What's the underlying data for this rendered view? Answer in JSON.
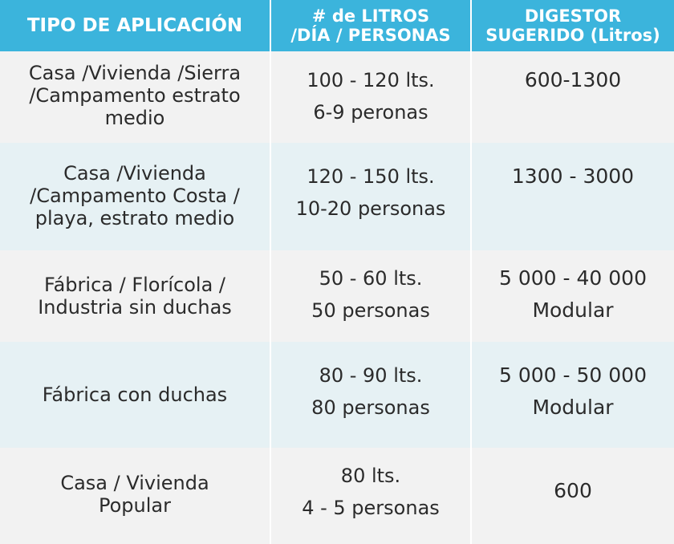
{
  "headers": {
    "col1": [
      "TIPO DE APLICACIÓN"
    ],
    "col2": [
      "# de LITROS",
      "/DÍA / PERSONAS"
    ],
    "col3": [
      "DIGESTOR",
      "SUGERIDO (Litros)"
    ]
  },
  "rows": [
    {
      "tipo": [
        "Casa /Vivienda /Sierra",
        "/Campamento estrato",
        "medio"
      ],
      "litros": [
        "100 - 120 lts.",
        "6-9 peronas"
      ],
      "digestor": [
        "600-1300"
      ]
    },
    {
      "tipo": [
        "Casa /Vivienda",
        "/Campamento Costa /",
        "playa, estrato medio"
      ],
      "litros": [
        "120 - 150 lts.",
        "10-20 personas"
      ],
      "digestor": [
        "1300 - 3000"
      ]
    },
    {
      "tipo": [
        "Fábrica / Florícola /",
        "Industria sin duchas"
      ],
      "litros": [
        "50 - 60 lts.",
        "50 personas"
      ],
      "digestor": [
        "5 000 - 40 000",
        "Modular"
      ]
    },
    {
      "tipo": [
        "Fábrica con duchas"
      ],
      "litros": [
        "80 - 90 lts.",
        "80 personas"
      ],
      "digestor": [
        "5 000 - 50 000",
        "Modular"
      ]
    },
    {
      "tipo": [
        "Casa / Vivienda",
        "Popular"
      ],
      "litros": [
        "80 lts.",
        "4 - 5 personas"
      ],
      "digestor": [
        "600"
      ]
    }
  ]
}
